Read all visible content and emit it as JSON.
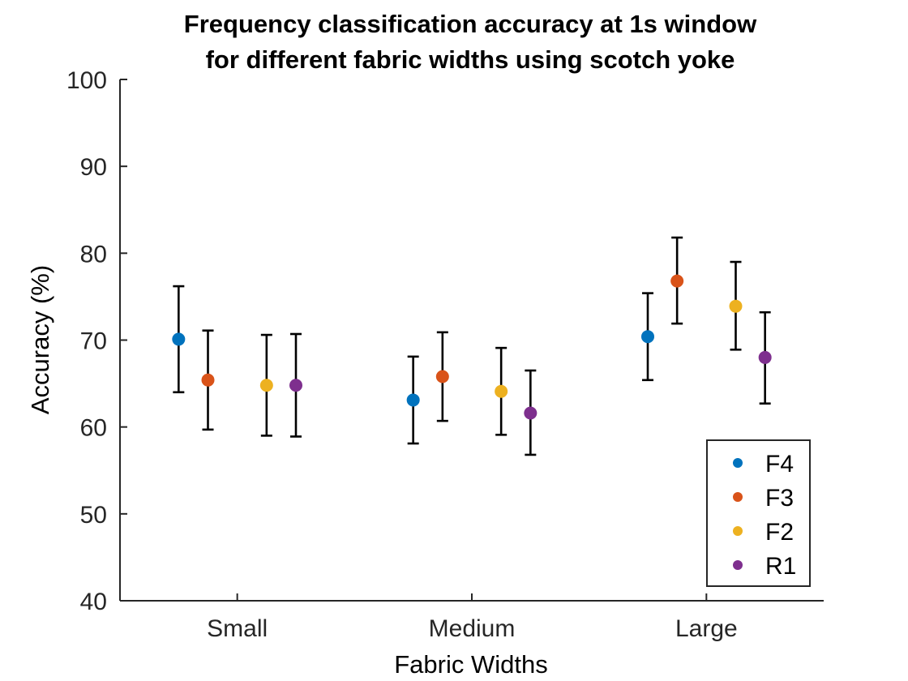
{
  "chart_data": {
    "type": "scatter",
    "title_lines": [
      "Frequency classification accuracy at 1s window",
      "for different fabric widths using scotch yoke"
    ],
    "xlabel": "Fabric Widths",
    "ylabel": "Accuracy (%)",
    "categories": [
      "Small",
      "Medium",
      "Large"
    ],
    "ylim": [
      40,
      100
    ],
    "yticks": [
      40,
      50,
      60,
      70,
      80,
      90,
      100
    ],
    "grid": false,
    "legend_position": "bottom-right",
    "series": [
      {
        "name": "F4",
        "color": "#0072BD",
        "offset": -0.25,
        "values": [
          70.1,
          63.1,
          70.4
        ],
        "lower": [
          64.0,
          58.1,
          65.4
        ],
        "upper": [
          76.2,
          68.1,
          75.4
        ]
      },
      {
        "name": "F3",
        "color": "#D95319",
        "offset": -0.125,
        "values": [
          65.4,
          65.8,
          76.8
        ],
        "lower": [
          59.7,
          60.7,
          71.9
        ],
        "upper": [
          71.1,
          70.9,
          81.8
        ]
      },
      {
        "name": "F2",
        "color": "#EDB120",
        "offset": 0.125,
        "values": [
          64.8,
          64.1,
          73.9
        ],
        "lower": [
          59.0,
          59.1,
          68.9
        ],
        "upper": [
          70.6,
          69.1,
          79.0
        ]
      },
      {
        "name": "R1",
        "color": "#7E2F8E",
        "offset": 0.25,
        "values": [
          64.8,
          61.6,
          68.0
        ],
        "lower": [
          58.9,
          56.8,
          62.7
        ],
        "upper": [
          70.7,
          66.5,
          73.2
        ]
      }
    ]
  }
}
